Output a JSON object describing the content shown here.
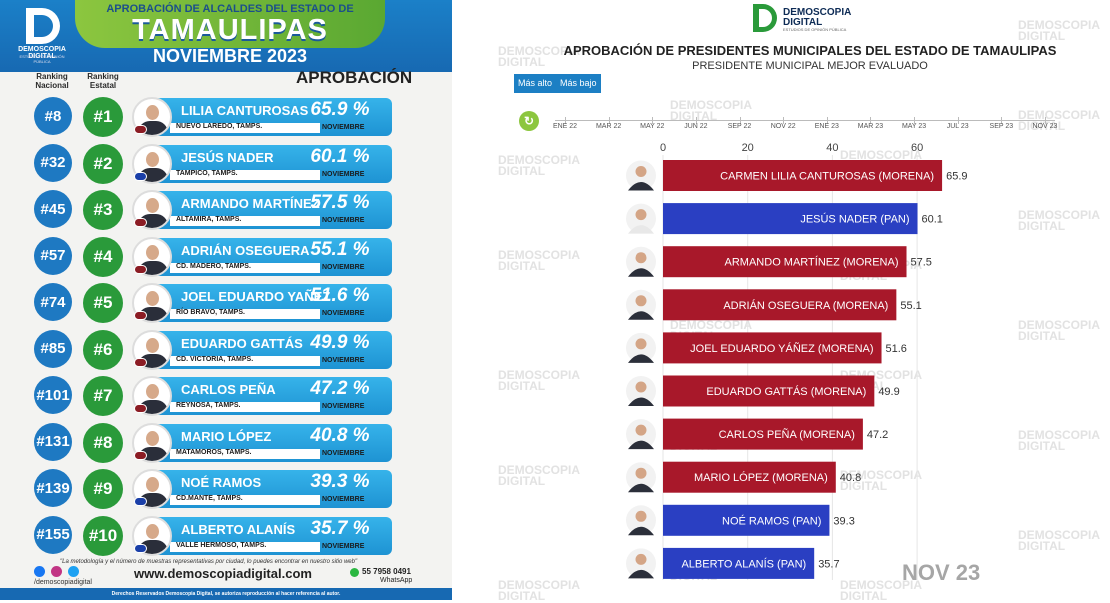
{
  "left": {
    "title_small": "APROBACIÓN DE ALCALDES DEL ESTADO DE",
    "title_big": "TAMAULIPAS",
    "month": "NOVIEMBRE 2023",
    "logo_name": "DEMOSCOPIA DIGITAL",
    "logo_tag": "ESTUDIOS DE OPINIÓN PÚBLICA",
    "col_nacional": "Ranking Nacional",
    "col_estatal": "Ranking Estatal",
    "aprobacion_label": "APROBACIÓN",
    "rows": [
      {
        "nat": "#8",
        "est": "#1",
        "name": "LILIA CANTUROSAS",
        "city": "NUEVO LAREDO, TAMPS.",
        "pct": "65.9 %",
        "month": "NOVIEMBRE",
        "party_color": "#8b1c24"
      },
      {
        "nat": "#32",
        "est": "#2",
        "name": "JESÚS NADER",
        "city": "TAMPICO, TAMPS.",
        "pct": "60.1 %",
        "month": "NOVIEMBRE",
        "party_color": "#1a3fa8"
      },
      {
        "nat": "#45",
        "est": "#3",
        "name": "ARMANDO MARTÍNEZ",
        "city": "ALTAMIRA, TAMPS.",
        "pct": "57.5 %",
        "month": "NOVIEMBRE",
        "party_color": "#8b1c24"
      },
      {
        "nat": "#57",
        "est": "#4",
        "name": "ADRIÁN OSEGUERA",
        "city": "CD. MADERO, TAMPS.",
        "pct": "55.1 %",
        "month": "NOVIEMBRE",
        "party_color": "#8b1c24"
      },
      {
        "nat": "#74",
        "est": "#5",
        "name": "JOEL EDUARDO YAÑEZ",
        "city": "RÍO BRAVO, TAMPS.",
        "pct": "51.6 %",
        "month": "NOVIEMBRE",
        "party_color": "#8b1c24"
      },
      {
        "nat": "#85",
        "est": "#6",
        "name": "EDUARDO GATTÁS",
        "city": "CD. VICTORIA, TAMPS.",
        "pct": "49.9 %",
        "month": "NOVIEMBRE",
        "party_color": "#8b1c24"
      },
      {
        "nat": "#101",
        "est": "#7",
        "name": "CARLOS PEÑA",
        "city": "REYNOSA, TAMPS.",
        "pct": "47.2 %",
        "month": "NOVIEMBRE",
        "party_color": "#8b1c24"
      },
      {
        "nat": "#131",
        "est": "#8",
        "name": "MARIO LÓPEZ",
        "city": "MATAMOROS, TAMPS.",
        "pct": "40.8 %",
        "month": "NOVIEMBRE",
        "party_color": "#8b1c24"
      },
      {
        "nat": "#139",
        "est": "#9",
        "name": "NOÉ RAMOS",
        "city": "CD.MANTE, TAMPS.",
        "pct": "39.3 %",
        "month": "NOVIEMBRE",
        "party_color": "#1a3fa8"
      },
      {
        "nat": "#155",
        "est": "#10",
        "name": "ALBERTO ALANÍS",
        "city": "VALLE HERMOSO, TAMPS.",
        "pct": "35.7 %",
        "month": "NOVIEMBRE",
        "party_color": "#1a3fa8"
      }
    ],
    "footer_note": "\"La metodología y el número de muestras representativas por ciudad, lo puedes encontrar en nuestro sitio web\"",
    "website": "www.demoscopiadigital.com",
    "handle": "/demoscopiadigital",
    "phone": "55 7958 0491",
    "whatsapp": "WhatsApp",
    "rights": "Derechos Reservados Demoscopia Digital, se autoriza reproducción al hacer referencia al autor."
  },
  "right": {
    "logo_line1": "DEMOSCOPIA",
    "logo_line2": "DIGITAL",
    "logo_tag": "ESTUDIOS DE OPINIÓN PÚBLICA",
    "btn_high": "Más alto",
    "btn_low": "Más bajo",
    "replay_icon": "↻",
    "timeline": [
      "ENE 22",
      "MAR 22",
      "MAY 22",
      "JUN 22",
      "SEP 22",
      "NOV 22",
      "ENE 23",
      "MAR 23",
      "MAY 23",
      "JUL 23",
      "SEP 23",
      "NOV 23"
    ],
    "stamp": "NOV 23",
    "watermark": "DEMOSCOPIA DIGITAL"
  },
  "chart_data": {
    "type": "bar",
    "orientation": "horizontal",
    "title": "APROBACIÓN DE PRESIDENTES MUNICIPALES DEL ESTADO DE TAMAULIPAS",
    "subtitle": "PRESIDENTE MUNICIPAL MEJOR EVALUADO",
    "xlim": [
      0,
      70
    ],
    "xticks": [
      0,
      20,
      40,
      60
    ],
    "colors": {
      "MORENA": "#a8182a",
      "PAN": "#2a3fc2"
    },
    "bars": [
      {
        "label": "CARMEN LILIA CANTUROSAS (MORENA)",
        "value": 65.9,
        "party": "MORENA"
      },
      {
        "label": "JESÚS NADER (PAN)",
        "value": 60.1,
        "party": "PAN"
      },
      {
        "label": "ARMANDO MARTÍNEZ (MORENA)",
        "value": 57.5,
        "party": "MORENA"
      },
      {
        "label": "ADRIÁN OSEGUERA (MORENA)",
        "value": 55.1,
        "party": "MORENA"
      },
      {
        "label": "JOEL EDUARDO YÁÑEZ (MORENA)",
        "value": 51.6,
        "party": "MORENA"
      },
      {
        "label": "EDUARDO GATTÁS (MORENA)",
        "value": 49.9,
        "party": "MORENA"
      },
      {
        "label": "CARLOS PEÑA (MORENA)",
        "value": 47.2,
        "party": "MORENA"
      },
      {
        "label": "MARIO LÓPEZ (MORENA)",
        "value": 40.8,
        "party": "MORENA"
      },
      {
        "label": "NOÉ RAMOS (PAN)",
        "value": 39.3,
        "party": "PAN"
      },
      {
        "label": "ALBERTO ALANÍS (PAN)",
        "value": 35.7,
        "party": "PAN"
      }
    ]
  }
}
